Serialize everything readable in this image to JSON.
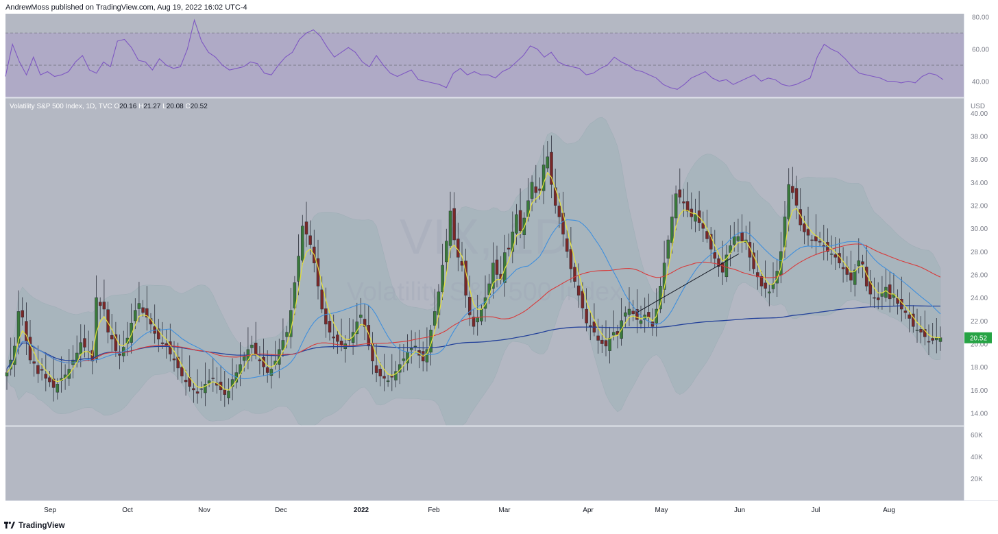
{
  "header": {
    "publish_text": "AndrewMoss published on TradingView.com, Aug 19, 2022 16:02 UTC-4"
  },
  "footer": {
    "brand": "TradingView",
    "logo_icon": "tradingview-logo-icon"
  },
  "colors": {
    "background": "#b4b8c3",
    "rsi_band": "#aea9c7",
    "rsi_line": "#7e57c2",
    "up_candle": "#3a7a3a",
    "down_candle": "#7a2828",
    "ema_fast": "#e6e23a",
    "sma_mid": "#3f8fdd",
    "ma_red": "#d83a3a",
    "ma_long": "#22409a",
    "bb_fill": "#9fb3b9",
    "price_badge": "#26a344"
  },
  "chart_data": [
    {
      "type": "line",
      "name": "RSI panel",
      "ylim": [
        30,
        82
      ],
      "y_ticks": [
        "80.00",
        "60.00",
        "40.00"
      ],
      "levels": [
        70,
        50,
        30
      ],
      "series": [
        {
          "name": "RSI",
          "values": [
            43,
            63,
            52,
            44,
            55,
            44,
            46,
            43,
            44,
            46,
            52,
            56,
            47,
            45,
            52,
            49,
            65,
            66,
            61,
            53,
            52,
            47,
            54,
            50,
            48,
            49,
            60,
            78,
            65,
            58,
            55,
            50,
            47,
            48,
            49,
            52,
            51,
            45,
            44,
            50,
            55,
            58,
            66,
            70,
            72,
            68,
            61,
            55,
            58,
            61,
            58,
            52,
            49,
            56,
            50,
            45,
            43,
            45,
            47,
            41,
            40,
            39,
            38,
            36,
            45,
            48,
            44,
            46,
            44,
            44,
            42,
            46,
            48,
            52,
            56,
            62,
            60,
            55,
            58,
            52,
            50,
            49,
            48,
            44,
            45,
            48,
            50,
            55,
            52,
            50,
            47,
            46,
            44,
            42,
            38,
            36,
            35,
            38,
            42,
            44,
            46,
            42,
            40,
            41,
            38,
            40,
            42,
            44,
            40,
            42,
            41,
            38,
            37,
            38,
            40,
            42,
            55,
            63,
            60,
            58,
            54,
            49,
            45,
            44,
            43,
            42,
            40,
            40,
            39,
            40,
            39,
            43,
            45,
            44,
            41
          ]
        }
      ]
    },
    {
      "type": "candlestick",
      "name": "Volatility S&P 500 Index, 1D, TVC",
      "legend": {
        "label": "Volatility S&P 500 Index, 1D, TVC",
        "o_label": "O",
        "o": "20.16",
        "h_label": "H",
        "h": "21.27",
        "l_label": "L",
        "l": "20.08",
        "c_label": "C",
        "c": "20.52"
      },
      "watermark": {
        "symbol": "VIX, 1D",
        "name": "Volatility S&P 500 Index"
      },
      "currency": "USD",
      "last_price": "20.52",
      "ylim": [
        12.9,
        41.3
      ],
      "y_ticks": [
        "40.00",
        "38.00",
        "36.00",
        "34.00",
        "32.00",
        "30.00",
        "28.00",
        "26.00",
        "24.00",
        "22.00",
        "20.00",
        "18.00",
        "16.00",
        "14.00"
      ],
      "x_labels": [
        "Sep",
        "Oct",
        "Nov",
        "Dec",
        "2022",
        "Feb",
        "Mar",
        "Apr",
        "May",
        "Jun",
        "Jul",
        "Aug"
      ],
      "closes": [
        17.5,
        18.6,
        19.8,
        22.8,
        22.3,
        20.2,
        18.6,
        18.3,
        17.4,
        17.7,
        17.0,
        16.7,
        16.2,
        16.5,
        17.0,
        17.3,
        17.8,
        18.6,
        19.2,
        20.1,
        19.7,
        19.3,
        18.5,
        24.0,
        23.3,
        23.0,
        21.0,
        20.4,
        19.4,
        19.0,
        19.7,
        20.5,
        21.8,
        22.9,
        23.5,
        22.7,
        22.3,
        21.7,
        20.9,
        20.4,
        20.0,
        19.9,
        19.1,
        18.6,
        17.9,
        17.2,
        16.7,
        16.3,
        16.0,
        15.7,
        16.1,
        16.5,
        16.8,
        17.0,
        16.4,
        16.0,
        15.6,
        15.9,
        16.9,
        17.5,
        18.2,
        18.9,
        19.5,
        19.9,
        19.0,
        18.5,
        18.0,
        17.5,
        17.8,
        18.5,
        19.5,
        20.3,
        21.0,
        22.9,
        25.3,
        27.6,
        30.2,
        29.5,
        28.6,
        27.0,
        25.0,
        23.0,
        21.7,
        21.0,
        20.5,
        20.2,
        19.9,
        20.0,
        20.3,
        21.0,
        21.9,
        22.5,
        21.5,
        19.8,
        18.5,
        17.5,
        17.2,
        17.0,
        16.8,
        17.1,
        17.6,
        18.2,
        18.7,
        19.3,
        19.6,
        19.8,
        19.0,
        18.5,
        19.5,
        21.2,
        22.8,
        24.5,
        26.8,
        28.9,
        31.5,
        29.0,
        27.5,
        26.8,
        24.2,
        22.5,
        21.5,
        22.3,
        23.0,
        24.0,
        25.2,
        27.0,
        26.0,
        25.6,
        27.9,
        28.2,
        29.7,
        31.2,
        29.8,
        30.9,
        32.4,
        34.0,
        33.1,
        33.3,
        35.5,
        36.2,
        33.8,
        32.0,
        31.0,
        29.5,
        28.0,
        26.5,
        25.4,
        24.2,
        23.1,
        21.8,
        21.5,
        21.0,
        20.3,
        20.0,
        19.8,
        20.5,
        21.0,
        20.8,
        22.0,
        22.7,
        23.0,
        22.6,
        22.1,
        22.0,
        22.5,
        22.3,
        21.5,
        23.0,
        25.0,
        27.0,
        29.0,
        31.0,
        33.0,
        32.7,
        32.2,
        31.5,
        31.0,
        31.2,
        30.5,
        30.0,
        29.1,
        28.2,
        27.4,
        26.7,
        26.2,
        27.7,
        28.5,
        29.3,
        29.3,
        28.9,
        29.0,
        27.5,
        26.5,
        25.8,
        25.0,
        24.8,
        24.5,
        25.2,
        26.3,
        28.0,
        31.0,
        33.8,
        33.1,
        32.0,
        30.3,
        29.7,
        29.4,
        29.0,
        28.9,
        28.8,
        28.4,
        28.0,
        27.8,
        27.5,
        27.0,
        26.5,
        26.0,
        25.5,
        26.4,
        27.2,
        26.9,
        25.0,
        24.3,
        24.0,
        23.8,
        24.4,
        24.9,
        23.9,
        24.3,
        23.5,
        23.0,
        22.7,
        22.2,
        21.5,
        21.2,
        21.0,
        20.6,
        20.2,
        20.3,
        20.5,
        20.52
      ],
      "series": [
        {
          "name": "EMA fast",
          "color_key": "ema_fast"
        },
        {
          "name": "SMA 20",
          "color_key": "sma_mid"
        },
        {
          "name": "SMA 50",
          "color_key": "ma_red"
        },
        {
          "name": "SMA 200",
          "color_key": "ma_long"
        },
        {
          "name": "Bollinger Bands",
          "color_key": "bb_fill"
        }
      ],
      "trendline": {
        "from": [
          "Apr",
          22.7
        ],
        "to": [
          "May",
          27.8
        ]
      }
    },
    {
      "type": "bar",
      "name": "Volume panel",
      "y_ticks": [
        "60K",
        "40K",
        "20K"
      ],
      "values": []
    }
  ]
}
